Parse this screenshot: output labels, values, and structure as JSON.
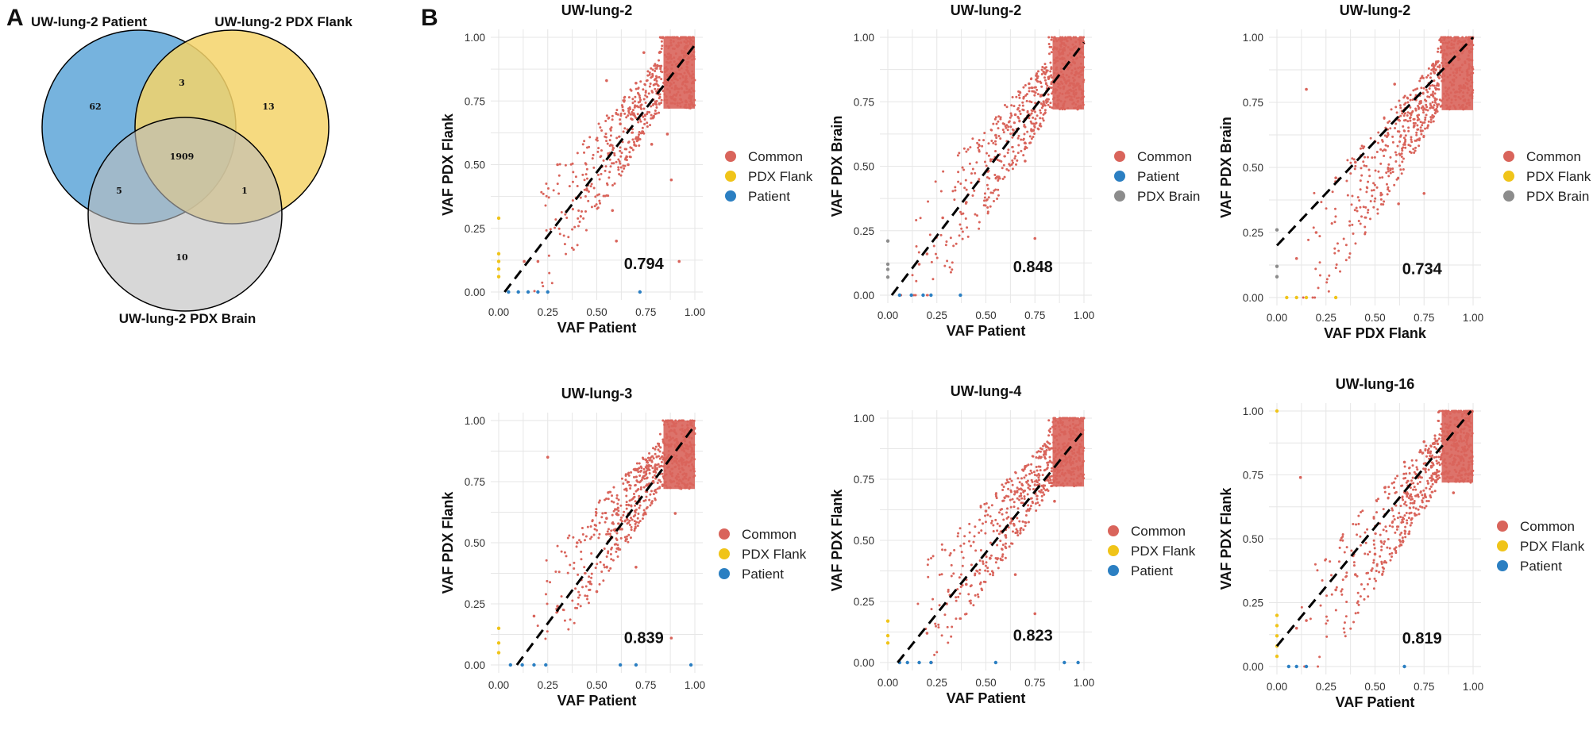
{
  "panel_labels": {
    "a": "A",
    "b": "B"
  },
  "colors": {
    "common": "#d9645b",
    "pdx_flank": "#f0c419",
    "patient": "#2b7fc2",
    "pdx_brain": "#8c8c8c",
    "venn_patient": "#5ea6d8",
    "venn_flank": "#f4d46a",
    "venn_brain": "#bdbdbd"
  },
  "venn": {
    "set_labels": {
      "patient": "UW-lung-2 Patient",
      "flank": "UW-lung-2 PDX Flank",
      "brain": "UW-lung-2 PDX Brain"
    },
    "counts": {
      "patient_only": "62",
      "flank_only": "13",
      "brain_only": "10",
      "patient_flank": "3",
      "patient_brain": "5",
      "flank_brain": "1",
      "all_three": "1909"
    }
  },
  "chart_data": [
    {
      "type": "scatter",
      "title": "UW-lung-2",
      "xlabel": "VAF Patient",
      "ylabel": "VAF PDX Flank",
      "xlim": [
        0,
        1
      ],
      "ylim": [
        0,
        1
      ],
      "xticks": [
        "0.00",
        "0.25",
        "0.50",
        "0.75",
        "1.00"
      ],
      "yticks": [
        "0.00",
        "0.25",
        "0.50",
        "0.75",
        "1.00"
      ],
      "correlation": "0.794",
      "diagonal": {
        "intercept": -0.03,
        "slope": 1.0
      },
      "legend": [
        {
          "label": "Common",
          "color": "#d9645b"
        },
        {
          "label": "PDX Flank",
          "color": "#f0c419"
        },
        {
          "label": "Patient",
          "color": "#2b7fc2"
        }
      ],
      "series": [
        {
          "name": "Common",
          "points": [
            [
              0.55,
              0.83
            ],
            [
              0.62,
              0.66
            ],
            [
              0.7,
              0.82
            ],
            [
              0.74,
              0.94
            ],
            [
              0.8,
              0.74
            ],
            [
              0.86,
              0.62
            ],
            [
              0.9,
              0.86
            ],
            [
              0.66,
              0.5
            ],
            [
              0.45,
              0.4
            ],
            [
              0.3,
              0.5
            ],
            [
              0.2,
              0.12
            ],
            [
              0.13,
              0.12
            ],
            [
              0.6,
              0.2
            ],
            [
              0.88,
              0.44
            ],
            [
              0.92,
              0.12
            ],
            [
              0.78,
              0.58
            ],
            [
              0.58,
              0.32
            ],
            [
              0.82,
              0.94
            ],
            [
              0.95,
              0.96
            ],
            [
              0.98,
              0.99
            ]
          ]
        },
        {
          "name": "PDX Flank",
          "points": [
            [
              0.0,
              0.06
            ],
            [
              0.0,
              0.09
            ],
            [
              0.0,
              0.12
            ],
            [
              0.0,
              0.15
            ],
            [
              0.0,
              0.29
            ]
          ]
        },
        {
          "name": "Patient",
          "points": [
            [
              0.05,
              0.0
            ],
            [
              0.1,
              0.0
            ],
            [
              0.15,
              0.0
            ],
            [
              0.2,
              0.0
            ],
            [
              0.25,
              0.0
            ],
            [
              0.72,
              0.0
            ]
          ]
        }
      ]
    },
    {
      "type": "scatter",
      "title": "UW-lung-2",
      "xlabel": "VAF Patient",
      "ylabel": "VAF PDX Brain",
      "xlim": [
        0,
        1
      ],
      "ylim": [
        0,
        1
      ],
      "xticks": [
        "0.00",
        "0.25",
        "0.50",
        "0.75",
        "1.00"
      ],
      "yticks": [
        "0.00",
        "0.25",
        "0.50",
        "0.75",
        "1.00"
      ],
      "correlation": "0.848",
      "diagonal": {
        "intercept": -0.02,
        "slope": 1.0
      },
      "legend": [
        {
          "label": "Common",
          "color": "#d9645b"
        },
        {
          "label": "Patient",
          "color": "#2b7fc2"
        },
        {
          "label": "PDX Brain",
          "color": "#8c8c8c"
        }
      ],
      "series": [
        {
          "name": "Common",
          "points": [
            [
              0.55,
              0.62
            ],
            [
              0.65,
              0.7
            ],
            [
              0.72,
              0.82
            ],
            [
              0.8,
              0.88
            ],
            [
              0.85,
              0.74
            ],
            [
              0.9,
              0.95
            ],
            [
              0.5,
              0.48
            ],
            [
              0.4,
              0.36
            ],
            [
              0.28,
              0.3
            ],
            [
              0.16,
              0.12
            ],
            [
              0.2,
              0.16
            ],
            [
              0.75,
              0.22
            ],
            [
              0.7,
              0.52
            ],
            [
              0.95,
              0.96
            ],
            [
              0.98,
              0.99
            ]
          ]
        },
        {
          "name": "Patient",
          "points": [
            [
              0.06,
              0.0
            ],
            [
              0.12,
              0.0
            ],
            [
              0.18,
              0.0
            ],
            [
              0.22,
              0.0
            ],
            [
              0.37,
              0.0
            ]
          ]
        },
        {
          "name": "PDX Brain",
          "points": [
            [
              0.0,
              0.07
            ],
            [
              0.0,
              0.1
            ],
            [
              0.0,
              0.12
            ],
            [
              0.0,
              0.21
            ]
          ]
        }
      ]
    },
    {
      "type": "scatter",
      "title": "UW-lung-2",
      "xlabel": "VAF PDX Flank",
      "ylabel": "VAF PDX Brain",
      "xlim": [
        0,
        1
      ],
      "ylim": [
        0,
        1
      ],
      "xticks": [
        "0.00",
        "0.25",
        "0.50",
        "0.75",
        "1.00"
      ],
      "yticks": [
        "0.00",
        "0.25",
        "0.50",
        "0.75",
        "1.00"
      ],
      "correlation": "0.734",
      "diagonal": {
        "intercept": 0.2,
        "slope": 0.8
      },
      "legend": [
        {
          "label": "Common",
          "color": "#d9645b"
        },
        {
          "label": "PDX Flank",
          "color": "#f0c419"
        },
        {
          "label": "PDX Brain",
          "color": "#8c8c8c"
        }
      ],
      "series": [
        {
          "name": "Common",
          "points": [
            [
              0.6,
              0.82
            ],
            [
              0.7,
              0.66
            ],
            [
              0.8,
              0.88
            ],
            [
              0.9,
              0.96
            ],
            [
              0.5,
              0.6
            ],
            [
              0.4,
              0.52
            ],
            [
              0.3,
              0.46
            ],
            [
              0.15,
              0.8
            ],
            [
              0.2,
              0.25
            ],
            [
              0.1,
              0.15
            ],
            [
              0.75,
              0.4
            ],
            [
              0.62,
              0.36
            ],
            [
              0.95,
              0.97
            ],
            [
              0.98,
              0.99
            ]
          ]
        },
        {
          "name": "PDX Flank",
          "points": [
            [
              0.05,
              0.0
            ],
            [
              0.1,
              0.0
            ],
            [
              0.15,
              0.0
            ],
            [
              0.3,
              0.0
            ]
          ]
        },
        {
          "name": "PDX Brain",
          "points": [
            [
              0.0,
              0.08
            ],
            [
              0.0,
              0.12
            ],
            [
              0.0,
              0.26
            ]
          ]
        }
      ]
    },
    {
      "type": "scatter",
      "title": "UW-lung-3",
      "xlabel": "VAF Patient",
      "ylabel": "VAF PDX Flank",
      "xlim": [
        0,
        1
      ],
      "ylim": [
        0,
        1
      ],
      "xticks": [
        "0.00",
        "0.25",
        "0.50",
        "0.75",
        "1.00"
      ],
      "yticks": [
        "0.00",
        "0.25",
        "0.50",
        "0.75",
        "1.00"
      ],
      "correlation": "0.839",
      "diagonal": {
        "intercept": -0.1,
        "slope": 1.08
      },
      "legend": [
        {
          "label": "Common",
          "color": "#d9645b"
        },
        {
          "label": "PDX Flank",
          "color": "#f0c419"
        },
        {
          "label": "Patient",
          "color": "#2b7fc2"
        }
      ],
      "series": [
        {
          "name": "Common",
          "points": [
            [
              0.55,
              0.6
            ],
            [
              0.65,
              0.72
            ],
            [
              0.75,
              0.84
            ],
            [
              0.85,
              0.9
            ],
            [
              0.9,
              0.62
            ],
            [
              0.5,
              0.3
            ],
            [
              0.4,
              0.5
            ],
            [
              0.25,
              0.85
            ],
            [
              0.18,
              0.2
            ],
            [
              0.3,
              0.24
            ],
            [
              0.7,
              0.4
            ],
            [
              0.95,
              0.96
            ],
            [
              0.98,
              0.99
            ],
            [
              0.88,
              0.11
            ]
          ]
        },
        {
          "name": "PDX Flank",
          "points": [
            [
              0.0,
              0.05
            ],
            [
              0.0,
              0.09
            ],
            [
              0.0,
              0.15
            ]
          ]
        },
        {
          "name": "Patient",
          "points": [
            [
              0.06,
              0.0
            ],
            [
              0.12,
              0.0
            ],
            [
              0.18,
              0.0
            ],
            [
              0.24,
              0.0
            ],
            [
              0.62,
              0.0
            ],
            [
              0.7,
              0.0
            ],
            [
              0.98,
              0.0
            ]
          ]
        }
      ]
    },
    {
      "type": "scatter",
      "title": "UW-lung-4",
      "xlabel": "VAF Patient",
      "ylabel": "VAF PDX Flank",
      "xlim": [
        0,
        1
      ],
      "ylim": [
        0,
        1
      ],
      "xticks": [
        "0.00",
        "0.25",
        "0.50",
        "0.75",
        "1.00"
      ],
      "yticks": [
        "0.00",
        "0.25",
        "0.50",
        "0.75",
        "1.00"
      ],
      "correlation": "0.823",
      "diagonal": {
        "intercept": -0.05,
        "slope": 1.0
      },
      "legend": [
        {
          "label": "Common",
          "color": "#d9645b"
        },
        {
          "label": "PDX Flank",
          "color": "#f0c419"
        },
        {
          "label": "Patient",
          "color": "#2b7fc2"
        }
      ],
      "series": [
        {
          "name": "Common",
          "points": [
            [
              0.5,
              0.62
            ],
            [
              0.6,
              0.52
            ],
            [
              0.7,
              0.8
            ],
            [
              0.8,
              0.86
            ],
            [
              0.85,
              0.66
            ],
            [
              0.9,
              0.94
            ],
            [
              0.4,
              0.32
            ],
            [
              0.3,
              0.24
            ],
            [
              0.2,
              0.12
            ],
            [
              0.65,
              0.36
            ],
            [
              0.75,
              0.2
            ],
            [
              0.95,
              0.96
            ],
            [
              0.98,
              0.99
            ]
          ]
        },
        {
          "name": "PDX Flank",
          "points": [
            [
              0.0,
              0.08
            ],
            [
              0.0,
              0.11
            ],
            [
              0.0,
              0.17
            ]
          ]
        },
        {
          "name": "Patient",
          "points": [
            [
              0.06,
              0.0
            ],
            [
              0.1,
              0.0
            ],
            [
              0.16,
              0.0
            ],
            [
              0.22,
              0.0
            ],
            [
              0.55,
              0.0
            ],
            [
              0.9,
              0.0
            ],
            [
              0.97,
              0.0
            ]
          ]
        }
      ]
    },
    {
      "type": "scatter",
      "title": "UW-lung-16",
      "xlabel": "VAF Patient",
      "ylabel": "VAF PDX Flank",
      "xlim": [
        0,
        1
      ],
      "ylim": [
        0,
        1
      ],
      "xticks": [
        "0.00",
        "0.25",
        "0.50",
        "0.75",
        "1.00"
      ],
      "yticks": [
        "0.00",
        "0.25",
        "0.50",
        "0.75",
        "1.00"
      ],
      "correlation": "0.819",
      "diagonal": {
        "intercept": 0.08,
        "slope": 0.93
      },
      "legend": [
        {
          "label": "Common",
          "color": "#d9645b"
        },
        {
          "label": "PDX Flank",
          "color": "#f0c419"
        },
        {
          "label": "Patient",
          "color": "#2b7fc2"
        }
      ],
      "series": [
        {
          "name": "Common",
          "points": [
            [
              0.55,
              0.7
            ],
            [
              0.65,
              0.8
            ],
            [
              0.75,
              0.88
            ],
            [
              0.85,
              0.92
            ],
            [
              0.9,
              0.68
            ],
            [
              0.5,
              0.44
            ],
            [
              0.4,
              0.36
            ],
            [
              0.3,
              0.3
            ],
            [
              0.15,
              0.18
            ],
            [
              0.1,
              0.15
            ],
            [
              0.12,
              0.74
            ],
            [
              0.6,
              0.46
            ],
            [
              0.95,
              0.96
            ],
            [
              0.98,
              0.99
            ]
          ]
        },
        {
          "name": "PDX Flank",
          "points": [
            [
              0.0,
              0.04
            ],
            [
              0.0,
              0.08
            ],
            [
              0.0,
              0.12
            ],
            [
              0.0,
              0.16
            ],
            [
              0.0,
              0.2
            ],
            [
              0.0,
              1.0
            ]
          ]
        },
        {
          "name": "Patient",
          "points": [
            [
              0.06,
              0.0
            ],
            [
              0.1,
              0.0
            ],
            [
              0.15,
              0.0
            ],
            [
              0.65,
              0.0
            ]
          ]
        }
      ]
    }
  ]
}
